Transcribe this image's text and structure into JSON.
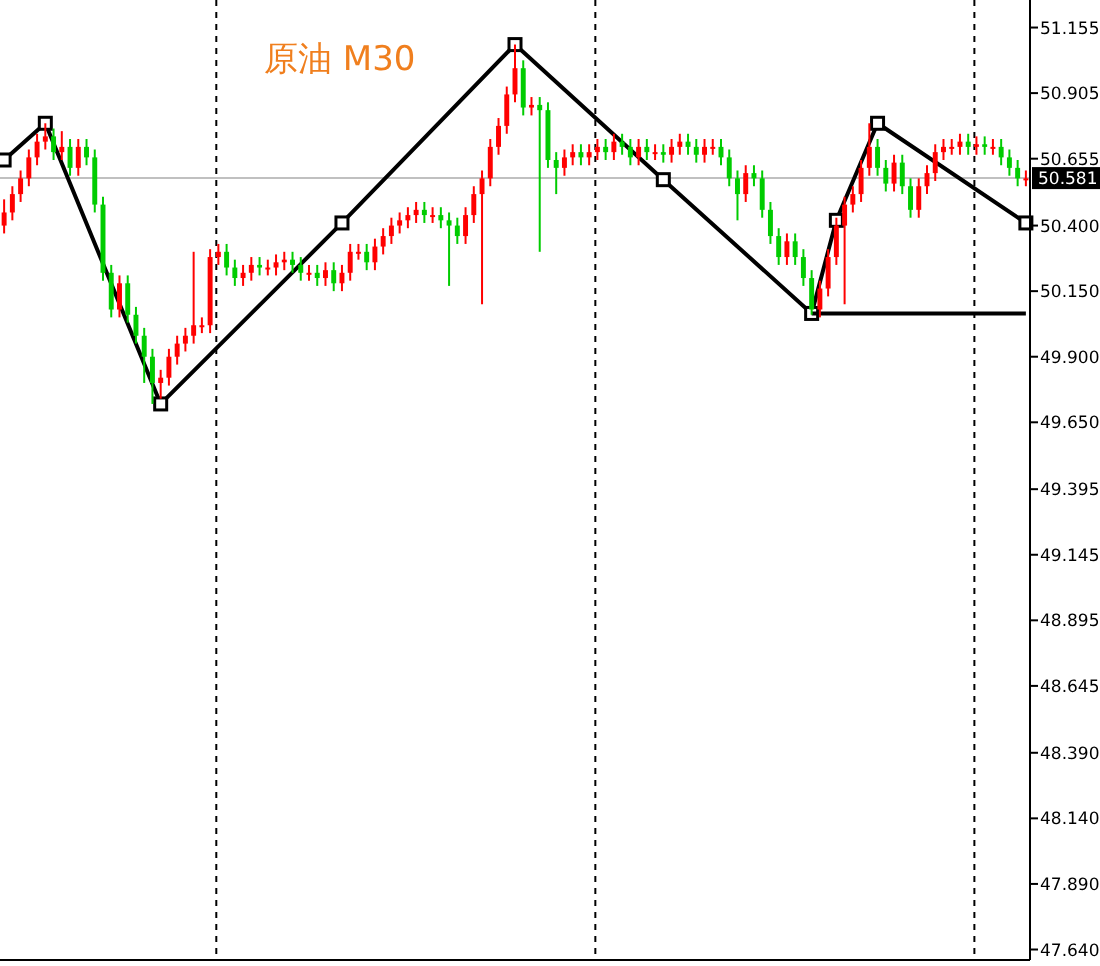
{
  "chart_data": {
    "type": "candlestick",
    "title": "原油 M30",
    "categories": [
      null,
      null,
      null,
      null,
      null,
      null,
      null,
      null,
      null,
      null,
      null,
      null,
      null,
      null,
      null,
      null,
      null,
      null,
      null,
      null,
      null,
      null,
      null,
      null,
      null,
      null,
      null,
      null,
      null,
      null,
      null,
      null,
      null,
      null,
      null,
      null,
      null,
      null,
      null,
      null,
      null,
      null,
      null,
      null,
      null,
      null,
      null,
      null,
      null,
      null,
      null,
      null,
      null,
      null,
      null,
      null,
      null,
      null,
      null,
      null,
      null,
      null,
      null,
      null,
      null,
      null,
      null,
      null,
      null,
      null,
      null,
      null,
      null,
      null,
      null,
      null,
      null,
      null,
      null,
      null,
      null,
      null,
      null,
      null,
      null,
      null,
      null,
      null,
      null,
      null,
      null,
      null,
      null,
      null,
      null,
      null,
      null,
      null,
      null,
      null,
      null,
      null,
      null,
      null,
      null,
      null,
      null,
      null,
      null,
      null,
      null,
      null,
      null,
      null,
      null,
      null,
      null,
      null,
      null,
      null,
      null,
      null,
      null,
      null,
      null
    ],
    "ohlc": [
      [
        50.4,
        50.5,
        50.37,
        50.45
      ],
      [
        50.45,
        50.55,
        50.42,
        50.52
      ],
      [
        50.52,
        50.61,
        50.49,
        50.58
      ],
      [
        50.58,
        50.69,
        50.55,
        50.66
      ],
      [
        50.66,
        50.75,
        50.63,
        50.72
      ],
      [
        50.72,
        50.79,
        50.69,
        50.74
      ],
      [
        50.74,
        50.77,
        50.65,
        50.68
      ],
      [
        50.68,
        50.76,
        50.65,
        50.7
      ],
      [
        50.7,
        50.73,
        50.59,
        50.62
      ],
      [
        50.62,
        50.73,
        50.59,
        50.7
      ],
      [
        50.7,
        50.73,
        50.63,
        50.66
      ],
      [
        50.66,
        50.69,
        50.45,
        50.48
      ],
      [
        50.48,
        50.51,
        50.19,
        50.22
      ],
      [
        50.22,
        50.25,
        50.05,
        50.08
      ],
      [
        50.08,
        50.21,
        50.05,
        50.18
      ],
      [
        50.18,
        50.21,
        50.03,
        50.06
      ],
      [
        50.06,
        50.09,
        49.95,
        49.98
      ],
      [
        49.98,
        50.01,
        49.8,
        49.9
      ],
      [
        49.9,
        49.93,
        49.72,
        49.8
      ],
      [
        49.8,
        49.85,
        49.74,
        49.82
      ],
      [
        49.82,
        49.93,
        49.79,
        49.9
      ],
      [
        49.9,
        49.98,
        49.87,
        49.95
      ],
      [
        49.95,
        50.01,
        49.92,
        49.98
      ],
      [
        49.98,
        50.3,
        49.95,
        50.02
      ],
      [
        50.02,
        50.05,
        49.99,
        50.02
      ],
      [
        50.02,
        50.31,
        49.99,
        50.28
      ],
      [
        50.28,
        50.33,
        50.25,
        50.3
      ],
      [
        50.3,
        50.33,
        50.21,
        50.24
      ],
      [
        50.24,
        50.27,
        50.17,
        50.2
      ],
      [
        50.2,
        50.25,
        50.17,
        50.22
      ],
      [
        50.22,
        50.28,
        50.19,
        50.25
      ],
      [
        50.25,
        50.28,
        50.21,
        50.24
      ],
      [
        50.24,
        50.27,
        50.21,
        50.24
      ],
      [
        50.24,
        50.29,
        50.21,
        50.26
      ],
      [
        50.26,
        50.3,
        50.23,
        50.27
      ],
      [
        50.27,
        50.3,
        50.22,
        50.25
      ],
      [
        50.25,
        50.28,
        50.19,
        50.22
      ],
      [
        50.22,
        50.25,
        50.19,
        50.22
      ],
      [
        50.22,
        50.25,
        50.17,
        50.2
      ],
      [
        50.2,
        50.26,
        50.17,
        50.23
      ],
      [
        50.23,
        50.26,
        50.15,
        50.18
      ],
      [
        50.18,
        50.25,
        50.15,
        50.22
      ],
      [
        50.22,
        50.33,
        50.19,
        50.3
      ],
      [
        50.3,
        50.33,
        50.27,
        50.3
      ],
      [
        50.3,
        50.33,
        50.23,
        50.26
      ],
      [
        50.26,
        50.35,
        50.23,
        50.32
      ],
      [
        50.32,
        50.39,
        50.29,
        50.36
      ],
      [
        50.36,
        50.43,
        50.33,
        50.4
      ],
      [
        50.4,
        50.45,
        50.37,
        50.42
      ],
      [
        50.42,
        50.47,
        50.39,
        50.44
      ],
      [
        50.44,
        50.49,
        50.41,
        50.46
      ],
      [
        50.46,
        50.49,
        50.41,
        50.44
      ],
      [
        50.44,
        50.47,
        50.41,
        50.44
      ],
      [
        50.44,
        50.47,
        50.39,
        50.42
      ],
      [
        50.42,
        50.45,
        50.17,
        50.4
      ],
      [
        50.4,
        50.43,
        50.33,
        50.36
      ],
      [
        50.36,
        50.47,
        50.33,
        50.44
      ],
      [
        50.44,
        50.55,
        50.41,
        50.52
      ],
      [
        50.52,
        50.61,
        50.1,
        50.58
      ],
      [
        50.58,
        50.73,
        50.55,
        50.7
      ],
      [
        50.7,
        50.81,
        50.67,
        50.78
      ],
      [
        50.78,
        50.93,
        50.75,
        50.9
      ],
      [
        50.9,
        51.09,
        50.87,
        51.0
      ],
      [
        51.0,
        51.03,
        50.82,
        50.85
      ],
      [
        50.85,
        50.89,
        50.82,
        50.86
      ],
      [
        50.86,
        50.89,
        50.3,
        50.84
      ],
      [
        50.84,
        50.87,
        50.62,
        50.65
      ],
      [
        50.65,
        50.68,
        50.52,
        50.62
      ],
      [
        50.62,
        50.69,
        50.59,
        50.66
      ],
      [
        50.66,
        50.71,
        50.63,
        50.68
      ],
      [
        50.68,
        50.71,
        50.63,
        50.66
      ],
      [
        50.66,
        50.71,
        50.63,
        50.68
      ],
      [
        50.68,
        50.73,
        50.65,
        50.7
      ],
      [
        50.7,
        50.73,
        50.65,
        50.68
      ],
      [
        50.68,
        50.75,
        50.65,
        50.72
      ],
      [
        50.72,
        50.75,
        50.67,
        50.7
      ],
      [
        50.7,
        50.73,
        50.63,
        50.66
      ],
      [
        50.66,
        50.73,
        50.63,
        50.7
      ],
      [
        50.7,
        50.73,
        50.65,
        50.68
      ],
      [
        50.68,
        50.71,
        50.65,
        50.68
      ],
      [
        50.68,
        50.71,
        50.64,
        50.67
      ],
      [
        50.67,
        50.73,
        50.64,
        50.7
      ],
      [
        50.7,
        50.75,
        50.67,
        50.72
      ],
      [
        50.72,
        50.75,
        50.67,
        50.7
      ],
      [
        50.7,
        50.73,
        50.64,
        50.67
      ],
      [
        50.67,
        50.73,
        50.64,
        50.7
      ],
      [
        50.7,
        50.73,
        50.67,
        50.7
      ],
      [
        50.7,
        50.73,
        50.63,
        50.66
      ],
      [
        50.66,
        50.69,
        50.55,
        50.58
      ],
      [
        50.58,
        50.61,
        50.42,
        50.52
      ],
      [
        50.52,
        50.63,
        50.49,
        50.6
      ],
      [
        50.6,
        50.63,
        50.55,
        50.58
      ],
      [
        50.58,
        50.61,
        50.43,
        50.46
      ],
      [
        50.46,
        50.49,
        50.33,
        50.36
      ],
      [
        50.36,
        50.39,
        50.25,
        50.28
      ],
      [
        50.28,
        50.37,
        50.25,
        50.34
      ],
      [
        50.34,
        50.37,
        50.25,
        50.28
      ],
      [
        50.28,
        50.31,
        50.17,
        50.2
      ],
      [
        50.2,
        50.23,
        50.06,
        50.08
      ],
      [
        50.08,
        50.19,
        50.05,
        50.16
      ],
      [
        50.16,
        50.31,
        50.13,
        50.28
      ],
      [
        50.28,
        50.43,
        50.25,
        50.4
      ],
      [
        50.4,
        50.51,
        50.1,
        50.48
      ],
      [
        50.48,
        50.55,
        50.45,
        50.52
      ],
      [
        50.52,
        50.65,
        50.49,
        50.62
      ],
      [
        50.62,
        50.79,
        50.59,
        50.7
      ],
      [
        50.7,
        50.73,
        50.59,
        50.62
      ],
      [
        50.62,
        50.65,
        50.53,
        50.56
      ],
      [
        50.56,
        50.67,
        50.53,
        50.64
      ],
      [
        50.64,
        50.67,
        50.52,
        50.55
      ],
      [
        50.55,
        50.58,
        50.43,
        50.46
      ],
      [
        50.46,
        50.58,
        50.43,
        50.55
      ],
      [
        50.55,
        50.63,
        50.52,
        50.6
      ],
      [
        50.6,
        50.71,
        50.57,
        50.68
      ],
      [
        50.68,
        50.73,
        50.65,
        50.7
      ],
      [
        50.7,
        50.73,
        50.67,
        50.7
      ],
      [
        50.7,
        50.75,
        50.67,
        50.72
      ],
      [
        50.72,
        50.75,
        50.67,
        50.7
      ],
      [
        50.7,
        50.74,
        50.67,
        50.71
      ],
      [
        50.71,
        50.74,
        50.67,
        50.7
      ],
      [
        50.7,
        50.73,
        50.67,
        50.7
      ],
      [
        50.7,
        50.73,
        50.63,
        50.66
      ],
      [
        50.66,
        50.69,
        50.59,
        50.62
      ],
      [
        50.62,
        50.65,
        50.55,
        50.58
      ],
      [
        50.58,
        50.61,
        50.55,
        50.58
      ]
    ],
    "colors": [
      "#ff0000",
      "#ff0000",
      "#ff0000",
      "#ff0000",
      "#ff0000",
      "#ff0000",
      "#00cc00",
      "#ff0000",
      "#00cc00",
      "#ff0000",
      "#00cc00",
      "#00cc00",
      "#00cc00",
      "#00cc00",
      "#ff0000",
      "#00cc00",
      "#00cc00",
      "#00cc00",
      "#00cc00",
      "#ff0000",
      "#ff0000",
      "#ff0000",
      "#ff0000",
      "#ff0000",
      "#ff0000",
      "#ff0000",
      "#ff0000",
      "#00cc00",
      "#00cc00",
      "#ff0000",
      "#ff0000",
      "#00cc00",
      "#ff0000",
      "#ff0000",
      "#ff0000",
      "#00cc00",
      "#00cc00",
      "#ff0000",
      "#00cc00",
      "#ff0000",
      "#00cc00",
      "#ff0000",
      "#ff0000",
      "#ff0000",
      "#00cc00",
      "#ff0000",
      "#ff0000",
      "#ff0000",
      "#ff0000",
      "#ff0000",
      "#ff0000",
      "#00cc00",
      "#ff0000",
      "#00cc00",
      "#00cc00",
      "#00cc00",
      "#ff0000",
      "#ff0000",
      "#ff0000",
      "#ff0000",
      "#ff0000",
      "#ff0000",
      "#ff0000",
      "#00cc00",
      "#ff0000",
      "#00cc00",
      "#00cc00",
      "#00cc00",
      "#ff0000",
      "#ff0000",
      "#00cc00",
      "#ff0000",
      "#ff0000",
      "#00cc00",
      "#ff0000",
      "#00cc00",
      "#00cc00",
      "#ff0000",
      "#00cc00",
      "#ff0000",
      "#00cc00",
      "#ff0000",
      "#ff0000",
      "#00cc00",
      "#00cc00",
      "#ff0000",
      "#ff0000",
      "#00cc00",
      "#00cc00",
      "#00cc00",
      "#ff0000",
      "#00cc00",
      "#00cc00",
      "#00cc00",
      "#00cc00",
      "#ff0000",
      "#00cc00",
      "#00cc00",
      "#00cc00",
      "#ff0000",
      "#ff0000",
      "#ff0000",
      "#ff0000",
      "#ff0000",
      "#ff0000",
      "#ff0000",
      "#00cc00",
      "#00cc00",
      "#ff0000",
      "#00cc00",
      "#00cc00",
      "#ff0000",
      "#ff0000",
      "#ff0000",
      "#ff0000",
      "#ff0000",
      "#ff0000",
      "#00cc00",
      "#ff0000",
      "#00cc00",
      "#ff0000",
      "#00cc00",
      "#00cc00",
      "#00cc00",
      "#ff0000"
    ],
    "series": [
      {
        "type": "line",
        "color": "#000000",
        "marker": "square",
        "values": [
          50.65,
          null,
          null,
          null,
          null,
          50.79,
          null,
          null,
          null,
          null,
          null,
          null,
          null,
          null,
          null,
          null,
          null,
          null,
          null,
          49.72,
          null,
          null,
          null,
          null,
          null,
          null,
          null,
          null,
          null,
          null,
          null,
          null,
          null,
          null,
          null,
          null,
          null,
          null,
          null,
          null,
          null,
          50.41,
          null,
          null,
          null,
          null,
          null,
          null,
          null,
          null,
          null,
          null,
          null,
          null,
          null,
          null,
          null,
          null,
          null,
          null,
          null,
          null,
          51.09,
          null,
          null,
          null,
          null,
          null,
          null,
          null,
          null,
          null,
          null,
          null,
          null,
          null,
          null,
          null,
          null,
          null,
          50.575,
          null,
          null,
          null,
          null,
          null,
          null,
          null,
          null,
          null,
          null,
          null,
          null,
          null,
          null,
          null,
          null,
          null,
          50.065,
          null,
          null,
          50.42,
          null,
          null,
          null,
          null,
          50.79,
          null,
          null,
          null,
          null,
          null,
          null,
          null,
          null,
          null,
          null,
          null,
          null,
          null,
          null,
          null,
          null,
          null,
          50.41
        ]
      },
      {
        "type": "line",
        "color": "#000000",
        "marker": "none",
        "values": [
          null,
          null,
          null,
          null,
          null,
          null,
          null,
          null,
          null,
          null,
          null,
          null,
          null,
          null,
          null,
          null,
          null,
          null,
          null,
          null,
          null,
          null,
          null,
          null,
          null,
          null,
          null,
          null,
          null,
          null,
          null,
          null,
          null,
          null,
          null,
          null,
          null,
          null,
          null,
          null,
          null,
          null,
          null,
          null,
          null,
          null,
          null,
          null,
          null,
          null,
          null,
          null,
          null,
          null,
          null,
          null,
          null,
          null,
          null,
          null,
          null,
          null,
          null,
          null,
          null,
          null,
          null,
          null,
          null,
          null,
          null,
          null,
          null,
          null,
          null,
          null,
          null,
          null,
          null,
          null,
          null,
          null,
          null,
          null,
          null,
          null,
          null,
          null,
          null,
          null,
          null,
          null,
          null,
          null,
          null,
          null,
          null,
          null,
          50.065,
          null,
          null,
          null,
          null,
          null,
          null,
          null,
          null,
          null,
          null,
          null,
          null,
          null,
          null,
          null,
          null,
          null,
          null,
          null,
          null,
          null,
          null,
          null,
          null,
          null,
          50.065
        ]
      }
    ],
    "ref_lines": [
      {
        "axis": "y",
        "value": 50.581,
        "label": "50.581",
        "color": "#c0c0c0"
      }
    ],
    "ylim": [
      47.6,
      51.26
    ],
    "yticks": [
      {
        "value": 51.155,
        "label": "51.155"
      },
      {
        "value": 50.905,
        "label": "50.905"
      },
      {
        "value": 50.655,
        "label": "50.655"
      },
      {
        "value": 50.4,
        "label": "50.400"
      },
      {
        "value": 50.15,
        "label": "50.150"
      },
      {
        "value": 49.9,
        "label": "49.900"
      },
      {
        "value": 49.65,
        "label": "49.650"
      },
      {
        "value": 49.395,
        "label": "49.395"
      },
      {
        "value": 49.145,
        "label": "49.145"
      },
      {
        "value": 48.895,
        "label": "48.895"
      },
      {
        "value": 48.645,
        "label": "48.645"
      },
      {
        "value": 48.39,
        "label": "48.390"
      },
      {
        "value": 48.14,
        "label": "48.140"
      },
      {
        "value": 47.89,
        "label": "47.890"
      },
      {
        "value": 47.64,
        "label": "47.640"
      }
    ],
    "tick_labels": "y"
  }
}
